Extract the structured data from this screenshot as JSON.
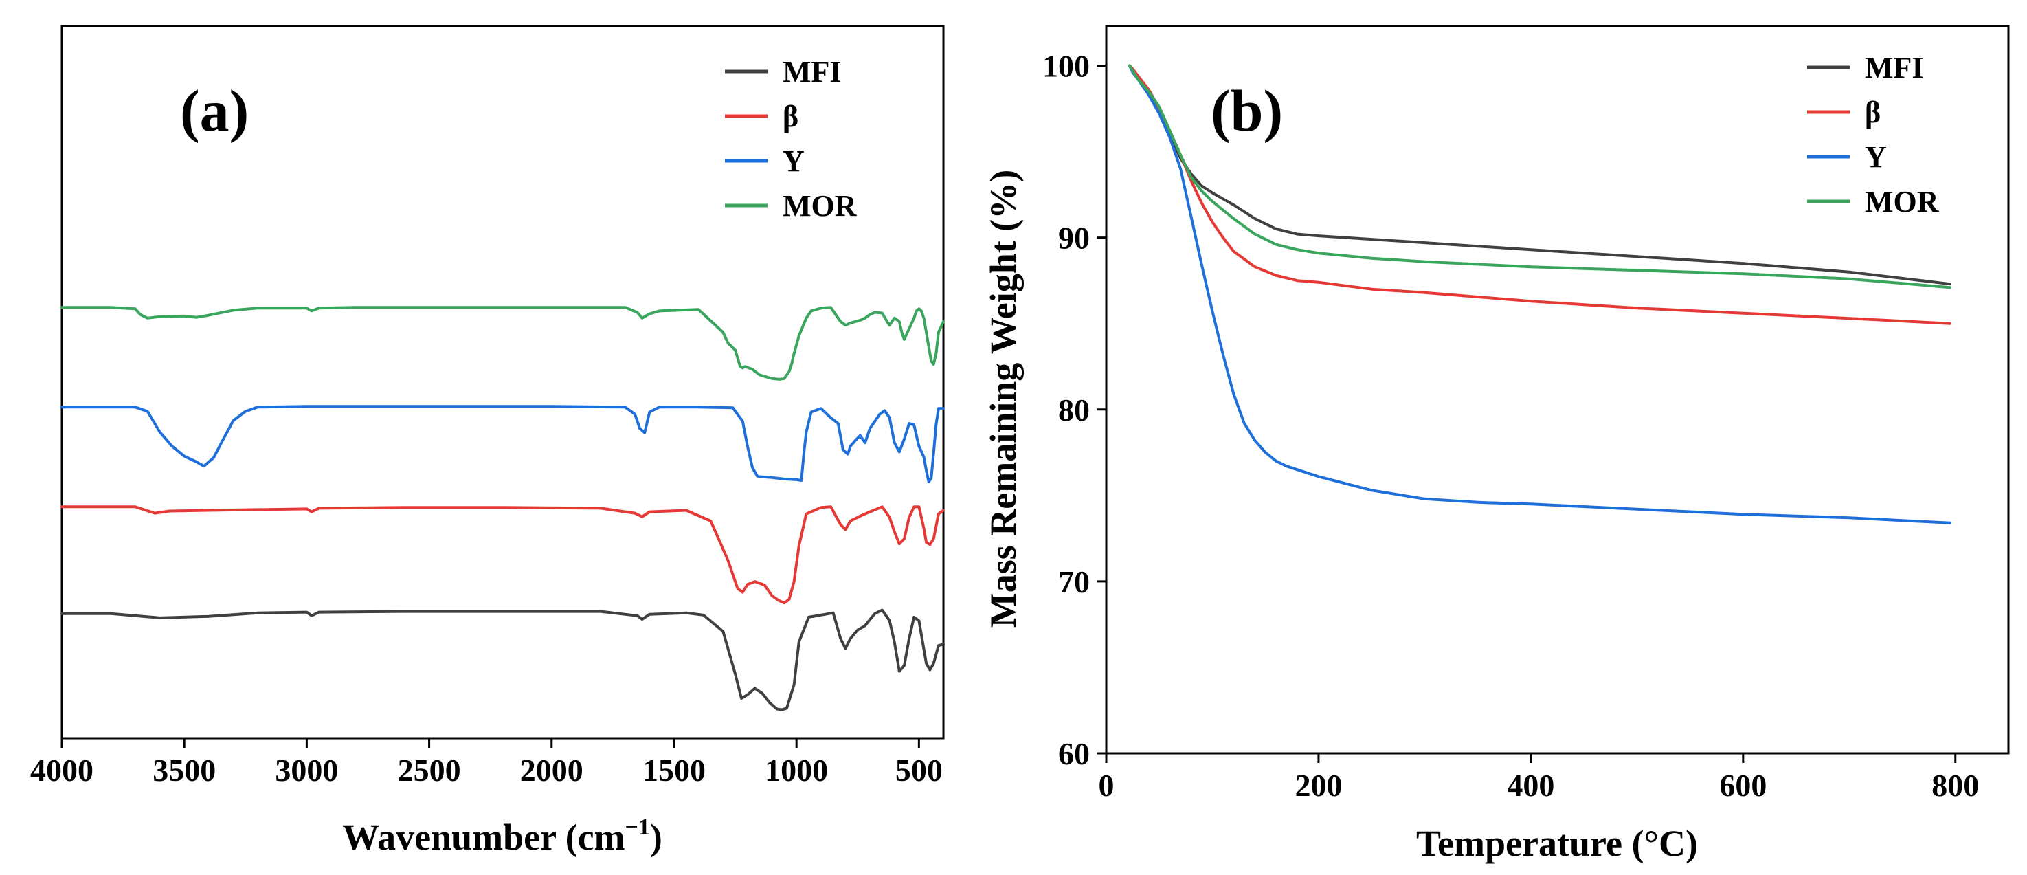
{
  "chart_data": [
    {
      "type": "line",
      "panel_label": "(a)",
      "xlabel": "Wavenumber (cm",
      "xlabel_sup": "−1",
      "xlabel_close": ")",
      "ylabel": "",
      "xlim": [
        4000,
        400
      ],
      "ylim": [
        0,
        100
      ],
      "x_ticks": [
        4000,
        3500,
        3000,
        2500,
        2000,
        1500,
        1000,
        500
      ],
      "x_tick_labels": [
        "4000",
        "3500",
        "3000",
        "2500",
        "2000",
        "1500",
        "1000",
        "500"
      ],
      "y_ticks_visible": false,
      "legend": [
        "MFI",
        "β",
        "Y",
        "MOR"
      ],
      "series": [
        {
          "name": "MFI",
          "color": "#404040",
          "x": [
            4000,
            3800,
            3600,
            3400,
            3200,
            3000,
            2980,
            2950,
            2600,
            2200,
            1800,
            1650,
            1630,
            1600,
            1450,
            1380,
            1300,
            1250,
            1225,
            1200,
            1170,
            1140,
            1110,
            1080,
            1060,
            1040,
            1010,
            990,
            950,
            900,
            850,
            820,
            800,
            780,
            750,
            720,
            680,
            650,
            620,
            600,
            580,
            560,
            540,
            520,
            500,
            480,
            470,
            455,
            440,
            420,
            400
          ],
          "y": [
            17.5,
            17.5,
            16.9,
            17.1,
            17.6,
            17.7,
            17.2,
            17.7,
            17.8,
            17.8,
            17.8,
            17.2,
            16.7,
            17.4,
            17.6,
            17.3,
            15.0,
            9.0,
            5.6,
            6.1,
            7.0,
            6.3,
            5.0,
            4.1,
            4.0,
            4.2,
            7.5,
            13.5,
            17.0,
            17.3,
            17.6,
            14.0,
            12.6,
            14.0,
            15.2,
            15.8,
            17.5,
            18.0,
            16.5,
            13.5,
            9.4,
            10.2,
            14.0,
            17.0,
            16.5,
            12.5,
            10.5,
            9.6,
            10.5,
            13.0,
            13.2
          ]
        },
        {
          "name": "β",
          "color": "#e53935",
          "x": [
            4000,
            3700,
            3620,
            3560,
            3400,
            3200,
            3000,
            2980,
            2950,
            2600,
            2200,
            1800,
            1660,
            1630,
            1600,
            1450,
            1350,
            1280,
            1240,
            1220,
            1200,
            1170,
            1130,
            1100,
            1070,
            1050,
            1030,
            1010,
            990,
            960,
            900,
            860,
            820,
            800,
            780,
            740,
            700,
            650,
            620,
            600,
            580,
            560,
            540,
            520,
            500,
            480,
            470,
            455,
            440,
            420,
            400
          ],
          "y": [
            32.5,
            32.5,
            31.6,
            31.9,
            32.0,
            32.1,
            32.2,
            31.8,
            32.3,
            32.4,
            32.4,
            32.3,
            31.6,
            31.1,
            31.8,
            32.0,
            30.5,
            25.0,
            21.0,
            20.5,
            21.6,
            22.0,
            21.5,
            20.0,
            19.3,
            19.0,
            19.5,
            22.0,
            27.0,
            31.5,
            32.4,
            32.5,
            30.0,
            29.3,
            30.5,
            31.2,
            31.8,
            32.5,
            31.0,
            29.0,
            27.3,
            28.0,
            31.0,
            32.5,
            32.5,
            29.5,
            27.5,
            27.2,
            28.0,
            31.5,
            32.0
          ]
        },
        {
          "name": "Y",
          "color": "#1e6fd9",
          "x": [
            4000,
            3700,
            3650,
            3600,
            3550,
            3500,
            3450,
            3420,
            3380,
            3350,
            3300,
            3250,
            3200,
            3000,
            2800,
            2400,
            2000,
            1700,
            1660,
            1640,
            1620,
            1600,
            1560,
            1400,
            1260,
            1220,
            1200,
            1180,
            1160,
            1140,
            1100,
            1050,
            1000,
            980,
            970,
            960,
            940,
            900,
            860,
            830,
            810,
            790,
            780,
            760,
            740,
            720,
            700,
            680,
            660,
            640,
            620,
            600,
            580,
            560,
            540,
            520,
            500,
            480,
            470,
            460,
            450,
            440,
            430,
            420,
            400
          ],
          "y": [
            46.5,
            46.5,
            45.9,
            43.0,
            41.0,
            39.6,
            38.8,
            38.2,
            39.4,
            41.4,
            44.6,
            45.9,
            46.5,
            46.6,
            46.6,
            46.6,
            46.6,
            46.5,
            45.5,
            43.5,
            42.9,
            45.8,
            46.5,
            46.5,
            46.4,
            44.5,
            41.0,
            38.0,
            36.8,
            36.7,
            36.6,
            36.4,
            36.3,
            36.2,
            40.0,
            43.0,
            45.8,
            46.3,
            45.0,
            44.2,
            40.5,
            39.9,
            41.0,
            41.8,
            42.5,
            41.5,
            43.5,
            44.5,
            45.5,
            46.0,
            45.0,
            41.5,
            40.2,
            42.0,
            44.2,
            44.0,
            41.0,
            39.5,
            37.6,
            36.0,
            36.5,
            40.0,
            44.0,
            46.3,
            46.3
          ]
        },
        {
          "name": "MOR",
          "color": "#3aa55d",
          "x": [
            4000,
            3800,
            3700,
            3680,
            3650,
            3600,
            3500,
            3450,
            3400,
            3300,
            3200,
            3000,
            2980,
            2950,
            2800,
            2400,
            2000,
            1800,
            1700,
            1650,
            1630,
            1600,
            1560,
            1400,
            1300,
            1280,
            1250,
            1230,
            1220,
            1210,
            1180,
            1150,
            1100,
            1070,
            1050,
            1040,
            1030,
            1020,
            1010,
            990,
            960,
            940,
            900,
            860,
            840,
            820,
            800,
            780,
            740,
            720,
            700,
            680,
            650,
            630,
            620,
            600,
            580,
            570,
            560,
            540,
            520,
            510,
            500,
            490,
            480,
            470,
            460,
            450,
            440,
            430,
            420,
            400
          ],
          "y": [
            60.5,
            60.5,
            60.3,
            59.5,
            59.0,
            59.2,
            59.3,
            59.1,
            59.4,
            60.1,
            60.4,
            60.4,
            60.0,
            60.4,
            60.5,
            60.5,
            60.5,
            60.5,
            60.5,
            59.8,
            59.0,
            59.6,
            60.0,
            60.2,
            57.0,
            55.5,
            54.5,
            52.2,
            52.0,
            52.2,
            51.8,
            51.0,
            50.5,
            50.4,
            50.5,
            51.0,
            51.5,
            52.5,
            54.0,
            56.5,
            59.0,
            60.0,
            60.4,
            60.5,
            59.5,
            58.5,
            58.0,
            58.3,
            58.7,
            59.0,
            59.5,
            59.8,
            59.7,
            58.5,
            58.0,
            59.0,
            58.5,
            57.0,
            56.0,
            57.5,
            59.0,
            60.0,
            60.3,
            60.0,
            59.0,
            57.0,
            55.0,
            53.0,
            52.5,
            54.0,
            57.0,
            58.5
          ]
        }
      ]
    },
    {
      "type": "line",
      "panel_label": "(b)",
      "xlabel": "Temperature (°C)",
      "ylabel": "Mass Remaining Weight (%)",
      "xlim": [
        0,
        850
      ],
      "ylim": [
        60,
        102.3
      ],
      "x_ticks": [
        0,
        200,
        400,
        600,
        800
      ],
      "x_tick_labels": [
        "0",
        "200",
        "400",
        "600",
        "800"
      ],
      "y_ticks": [
        60,
        70,
        80,
        90,
        100
      ],
      "y_tick_labels": [
        "60",
        "70",
        "80",
        "90",
        "100"
      ],
      "legend": [
        "MFI",
        "β",
        "Y",
        "MOR"
      ],
      "series": [
        {
          "name": "MFI",
          "color": "#404040",
          "x": [
            22,
            25,
            30,
            40,
            50,
            60,
            70,
            80,
            90,
            100,
            120,
            140,
            160,
            180,
            200,
            250,
            300,
            350,
            400,
            500,
            600,
            700,
            795
          ],
          "y": [
            100,
            99.8,
            99.3,
            98.6,
            97.5,
            96.0,
            94.6,
            93.7,
            93.0,
            92.6,
            91.9,
            91.1,
            90.5,
            90.2,
            90.1,
            89.9,
            89.7,
            89.5,
            89.3,
            88.9,
            88.5,
            88.0,
            87.3
          ]
        },
        {
          "name": "β",
          "color": "#e53935",
          "x": [
            22,
            25,
            30,
            40,
            50,
            60,
            70,
            80,
            90,
            100,
            110,
            120,
            140,
            160,
            180,
            200,
            250,
            300,
            400,
            500,
            600,
            700,
            795
          ],
          "y": [
            100,
            99.8,
            99.4,
            98.6,
            97.5,
            96.2,
            94.8,
            93.3,
            92.0,
            90.9,
            90.0,
            89.2,
            88.3,
            87.8,
            87.5,
            87.4,
            87.0,
            86.8,
            86.3,
            85.9,
            85.6,
            85.3,
            85.0
          ]
        },
        {
          "name": "Y",
          "color": "#1e6fd9",
          "x": [
            22,
            25,
            30,
            40,
            50,
            60,
            70,
            80,
            90,
            100,
            110,
            120,
            130,
            140,
            150,
            160,
            170,
            180,
            200,
            250,
            300,
            350,
            400,
            500,
            600,
            700,
            795
          ],
          "y": [
            100,
            99.6,
            99.2,
            98.3,
            97.2,
            95.8,
            94.0,
            91.2,
            88.4,
            85.7,
            83.2,
            80.9,
            79.2,
            78.2,
            77.5,
            77.0,
            76.7,
            76.5,
            76.1,
            75.3,
            74.8,
            74.6,
            74.5,
            74.2,
            73.9,
            73.7,
            73.4
          ]
        },
        {
          "name": "MOR",
          "color": "#3aa55d",
          "x": [
            22,
            25,
            30,
            40,
            50,
            60,
            70,
            80,
            90,
            100,
            120,
            140,
            160,
            180,
            200,
            250,
            300,
            400,
            500,
            600,
            700,
            795
          ],
          "y": [
            100,
            99.7,
            99.2,
            98.5,
            97.6,
            96.2,
            94.8,
            93.5,
            92.7,
            92.1,
            91.1,
            90.2,
            89.6,
            89.3,
            89.1,
            88.8,
            88.6,
            88.3,
            88.1,
            87.9,
            87.6,
            87.1
          ]
        }
      ]
    }
  ]
}
